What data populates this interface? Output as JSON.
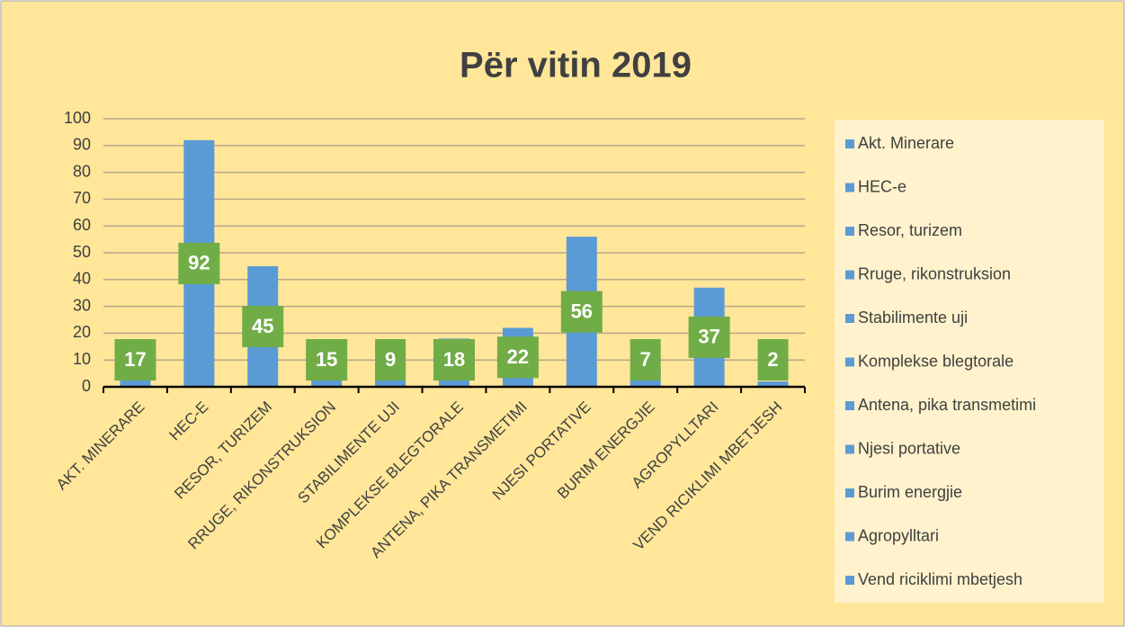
{
  "chart_data": {
    "type": "bar",
    "title": "Për vitin 2019",
    "categories": [
      "AKT. MINERARE",
      "HEC-E",
      "RESOR, TURIZEM",
      "RRUGE, RIKONSTRUKSION",
      "STABILIMENTE UJI",
      "KOMPLEKSE BLEGTORALE",
      "ANTENA, PIKA TRANSMETIMI",
      "NJESI PORTATIVE",
      "BURIM ENERGJIE",
      "AGROPYLLTARI",
      "VEND RICIKLIMI MBETJESH"
    ],
    "legend": [
      "Akt. Minerare",
      "HEC-e",
      "Resor, turizem",
      "Rruge, rikonstruksion",
      "Stabilimente uji",
      "Komplekse blegtorale",
      "Antena, pika transmetimi",
      "Njesi portative",
      "Burim energjie",
      "Agropylltari",
      "Vend riciklimi mbetjesh"
    ],
    "values": [
      17,
      92,
      45,
      15,
      9,
      18,
      22,
      56,
      7,
      37,
      2
    ],
    "color": "#5b9bd5",
    "label_color": "#70ad47",
    "ylim": [
      0,
      100
    ],
    "yticks": [
      0,
      10,
      20,
      30,
      40,
      50,
      60,
      70,
      80,
      90,
      100
    ],
    "grid": true,
    "legend_position": "right"
  }
}
